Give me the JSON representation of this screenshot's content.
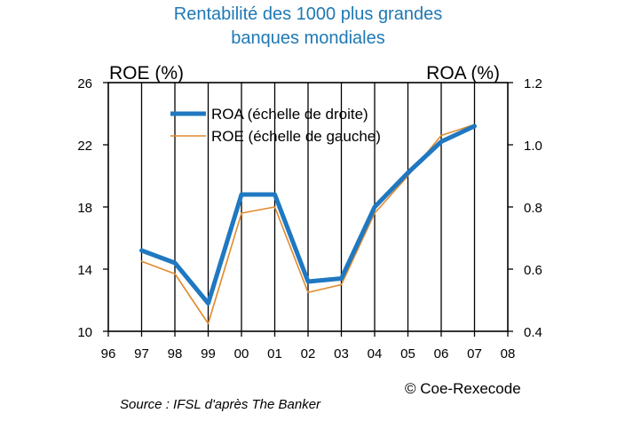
{
  "chart_data": {
    "type": "line",
    "title_line1": "Rentabilité des 1000 plus grandes",
    "title_line2": "banques mondiales",
    "y_left_label": "ROE (%)",
    "y_right_label": "ROA (%)",
    "x_tick_labels": [
      "96",
      "97",
      "98",
      "99",
      "00",
      "01",
      "02",
      "03",
      "04",
      "05",
      "06",
      "07",
      "08"
    ],
    "y_left_ticks": [
      "26",
      "22",
      "18",
      "14",
      "10"
    ],
    "y_right_ticks": [
      "1.2",
      "1.0",
      "0.8",
      "0.6",
      "0.4"
    ],
    "ylim_left": [
      10,
      26
    ],
    "ylim_right": [
      0.4,
      1.2
    ],
    "x": [
      "97",
      "98",
      "99",
      "00",
      "01",
      "02",
      "03",
      "04",
      "05",
      "06",
      "07"
    ],
    "series": [
      {
        "name": "ROA (échelle de droite)",
        "axis": "right",
        "color": "#1f78c1",
        "values": [
          0.66,
          0.62,
          0.49,
          0.84,
          0.84,
          0.56,
          0.57,
          0.8,
          0.91,
          1.01,
          1.06
        ]
      },
      {
        "name": "ROE (échelle de gauche)",
        "axis": "left",
        "color": "#e08a2c",
        "values": [
          14.5,
          13.7,
          10.5,
          17.6,
          18.0,
          12.5,
          13.0,
          17.6,
          20.0,
          22.6,
          23.3
        ]
      }
    ],
    "grid": "vertical",
    "legend_position": "top-center",
    "source": "Source : IFSL d'après The Banker",
    "copyright": "© Coe-Rexecode"
  }
}
